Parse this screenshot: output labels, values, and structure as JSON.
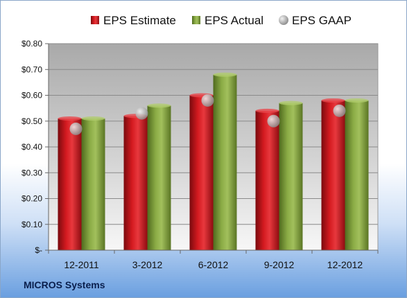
{
  "company": "MICROS Systems",
  "chart_data": {
    "type": "bar",
    "categories": [
      "12-2011",
      "3-2012",
      "6-2012",
      "9-2012",
      "12-2012"
    ],
    "series": [
      {
        "name": "EPS Estimate",
        "kind": "bar",
        "color": "#c0151b",
        "values": [
          0.51,
          0.52,
          0.6,
          0.54,
          0.58
        ]
      },
      {
        "name": "EPS Actual",
        "kind": "bar",
        "color": "#7e9c3a",
        "values": [
          0.51,
          0.56,
          0.68,
          0.57,
          0.58
        ]
      },
      {
        "name": "EPS GAAP",
        "kind": "marker",
        "color": "#b9b9b9",
        "values": [
          0.47,
          0.53,
          0.58,
          0.5,
          0.54
        ]
      }
    ],
    "yticks": [
      "$-",
      "$0.10",
      "$0.20",
      "$0.30",
      "$0.40",
      "$0.50",
      "$0.60",
      "$0.70",
      "$0.80"
    ],
    "ylim": [
      0,
      0.8
    ],
    "grid": true,
    "legend": "top"
  }
}
